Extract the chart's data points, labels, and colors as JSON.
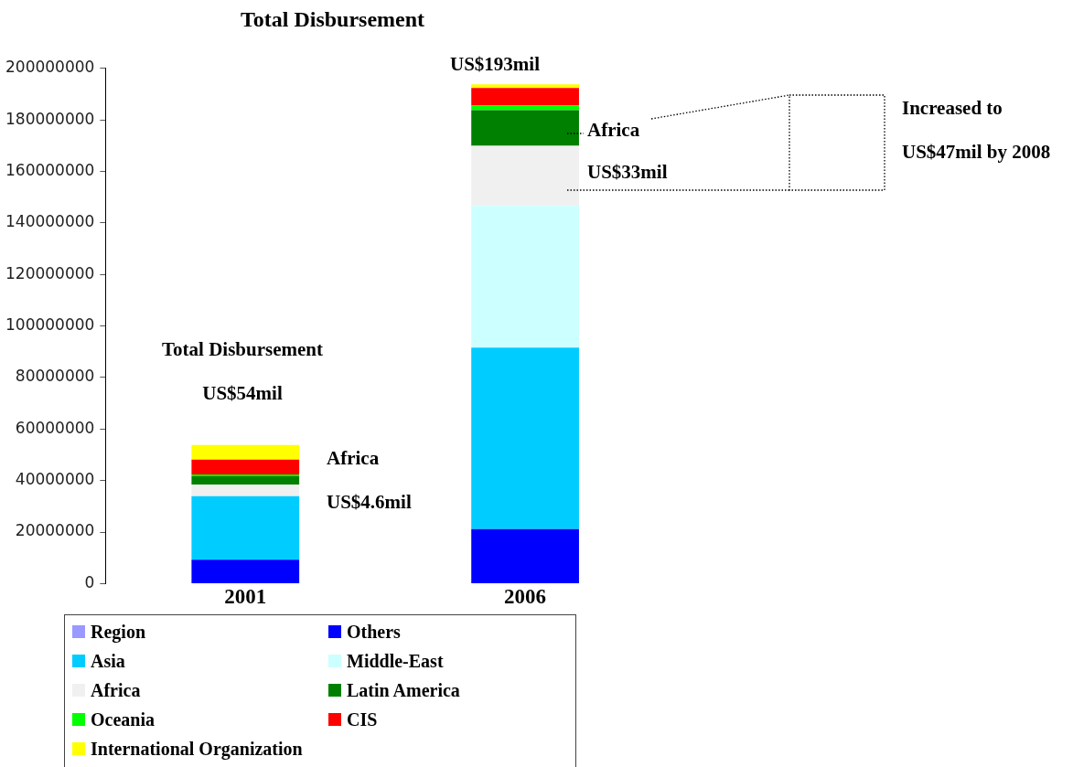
{
  "chart_data": {
    "type": "bar",
    "stacked": true,
    "title": "Total Disbursement",
    "categories": [
      "2001",
      "2006"
    ],
    "series": [
      {
        "name": "Region",
        "color": "#9999ff",
        "values": [
          null,
          null
        ]
      },
      {
        "name": "Others",
        "color": "#0000ff",
        "values": [
          9300000,
          21200000
        ]
      },
      {
        "name": "Asia",
        "color": "#00ccff",
        "values": [
          24600000,
          70400000
        ]
      },
      {
        "name": "Middle-East",
        "color": "#ccffff",
        "values": [
          0,
          55000000
        ]
      },
      {
        "name": "Africa",
        "color": "#f0f0f0",
        "values": [
          4600000,
          23300000
        ]
      },
      {
        "name": "Latin America",
        "color": "#008000",
        "values": [
          3200000,
          13900000
        ]
      },
      {
        "name": "Oceania",
        "color": "#00ff00",
        "values": [
          700000,
          1800000
        ]
      },
      {
        "name": "CIS",
        "color": "#ff0000",
        "values": [
          5700000,
          6800000
        ]
      },
      {
        "name": "International Organization",
        "color": "#ffff00",
        "values": [
          5700000,
          1400000
        ]
      }
    ],
    "ylim": [
      0,
      200000000
    ],
    "yticks": [
      0,
      20000000,
      40000000,
      60000000,
      80000000,
      100000000,
      120000000,
      140000000,
      160000000,
      180000000,
      200000000
    ],
    "grid": false,
    "legend": "bottom",
    "annotations": [
      "Total Disbursement",
      "US$54mil",
      "Africa",
      "US$4.6mil",
      "US$193mil",
      "Africa",
      "US$33mil",
      "Increased to",
      "US$47mil by 2008"
    ]
  }
}
